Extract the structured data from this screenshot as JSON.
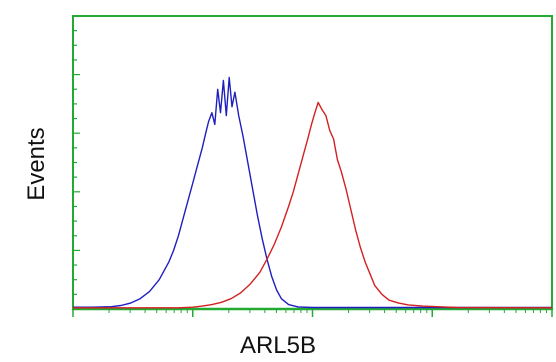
{
  "chart_data": {
    "type": "line",
    "title": "",
    "xlabel": "ARL5B",
    "ylabel": "Events",
    "xlim": [
      0,
      100
    ],
    "ylim": [
      0,
      100
    ],
    "x_scale": "log",
    "grid": false,
    "legend": "none",
    "colors": {
      "frame": "#22aa33",
      "ticks": "#22aa33",
      "baseline": "#22aa33"
    },
    "series": [
      {
        "color": "#1f1fbf",
        "points": [
          [
            0,
            0.6
          ],
          [
            4,
            0.6
          ],
          [
            8,
            0.8
          ],
          [
            10,
            1.2
          ],
          [
            12,
            2.0
          ],
          [
            14,
            3.5
          ],
          [
            16,
            6
          ],
          [
            18,
            10
          ],
          [
            20,
            16
          ],
          [
            21,
            20
          ],
          [
            22,
            25
          ],
          [
            23,
            31
          ],
          [
            24,
            37
          ],
          [
            25,
            43
          ],
          [
            26,
            49
          ],
          [
            27,
            55
          ],
          [
            27.7,
            60
          ],
          [
            28.3,
            64
          ],
          [
            29,
            67
          ],
          [
            29.6,
            63
          ],
          [
            30.2,
            75
          ],
          [
            30.8,
            67
          ],
          [
            31.4,
            78
          ],
          [
            32,
            66
          ],
          [
            32.6,
            79
          ],
          [
            33.2,
            69
          ],
          [
            33.8,
            74
          ],
          [
            34.6,
            66
          ],
          [
            35.5,
            59
          ],
          [
            36.5,
            50
          ],
          [
            37.5,
            41
          ],
          [
            38.5,
            32
          ],
          [
            39.5,
            24
          ],
          [
            40.5,
            17
          ],
          [
            41.5,
            11
          ],
          [
            42.5,
            6.5
          ],
          [
            43.5,
            3.5
          ],
          [
            45,
            1.5
          ],
          [
            47,
            0.7
          ],
          [
            50,
            0.5
          ],
          [
            100,
            0.5
          ]
        ]
      },
      {
        "color": "#d42020",
        "points": [
          [
            0,
            0.4
          ],
          [
            22,
            0.4
          ],
          [
            25,
            0.6
          ],
          [
            27,
            1.0
          ],
          [
            29,
            1.5
          ],
          [
            31,
            2.3
          ],
          [
            33,
            3.5
          ],
          [
            35,
            5.5
          ],
          [
            37,
            8.5
          ],
          [
            39,
            12.5
          ],
          [
            40.5,
            17
          ],
          [
            42,
            22
          ],
          [
            43.5,
            28
          ],
          [
            45,
            35
          ],
          [
            46,
            40
          ],
          [
            47,
            46
          ],
          [
            48,
            52
          ],
          [
            49,
            58
          ],
          [
            49.8,
            63
          ],
          [
            50.5,
            67
          ],
          [
            51.2,
            70.5
          ],
          [
            52,
            68
          ],
          [
            52.8,
            66
          ],
          [
            53.6,
            61
          ],
          [
            54.4,
            58
          ],
          [
            55.2,
            51
          ],
          [
            56,
            47
          ],
          [
            57,
            41
          ],
          [
            58,
            34
          ],
          [
            59,
            27
          ],
          [
            60,
            21
          ],
          [
            61,
            16
          ],
          [
            62,
            12
          ],
          [
            63,
            8
          ],
          [
            64.5,
            5
          ],
          [
            66,
            3
          ],
          [
            68,
            2
          ],
          [
            70,
            1.4
          ],
          [
            73,
            1.0
          ],
          [
            76,
            0.8
          ],
          [
            80,
            0.5
          ],
          [
            100,
            0.4
          ]
        ]
      }
    ]
  }
}
